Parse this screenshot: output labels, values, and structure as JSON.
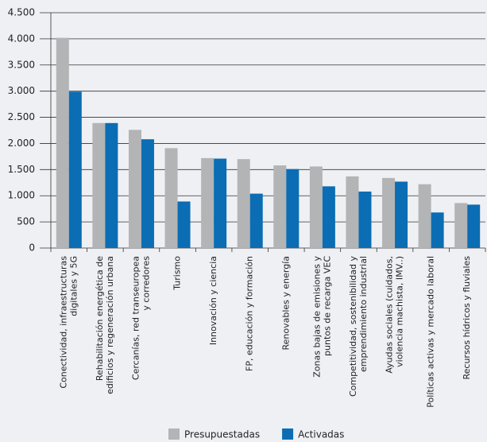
{
  "chart_data": {
    "type": "bar",
    "categories": [
      [
        "Conectividad, infraestructuras",
        "digitales y 5G"
      ],
      [
        "Rehabilitación energética de",
        "edificios y regeneración urbana"
      ],
      [
        "Cercanías, red transeuropea",
        "y corredores"
      ],
      [
        "Turismo"
      ],
      [
        "Innovación y ciencia"
      ],
      [
        "FP, educación y formación"
      ],
      [
        "Renovables y energía"
      ],
      [
        "Zonas bajas de emisiones y",
        "puntos de recarga VEC"
      ],
      [
        "Competitividad, sostenibilidad y",
        "emprendimiento industrial"
      ],
      [
        "Ayudas sociales (cuidados,",
        "violencia machista, IMV..)"
      ],
      [
        "Políticas activas y mercado laboral"
      ],
      [
        "Recursos hídricos y fluviales"
      ]
    ],
    "series": [
      {
        "name": "Presupuestadas",
        "color": "#b2b4b6",
        "values": [
          4020,
          2390,
          2260,
          1910,
          1720,
          1700,
          1580,
          1560,
          1370,
          1340,
          1220,
          860
        ]
      },
      {
        "name": "Activadas",
        "color": "#0b6db3",
        "values": [
          2990,
          2390,
          2080,
          890,
          1710,
          1040,
          1510,
          1180,
          1080,
          1270,
          680,
          830
        ]
      }
    ],
    "ylim": [
      0,
      4500
    ],
    "yticks": [
      0,
      500,
      {
        "value": 1000,
        "label": "1.000"
      },
      {
        "value": 1500,
        "label": "1.500"
      },
      {
        "value": 2000,
        "label": "2.000"
      },
      {
        "value": 2500,
        "label": "2.500"
      },
      {
        "value": 3000,
        "label": "3.000"
      },
      {
        "value": 3500,
        "label": "3.500"
      },
      {
        "value": 4000,
        "label": "4.000"
      },
      {
        "value": 4500,
        "label": "4.500"
      }
    ],
    "grid": true
  }
}
